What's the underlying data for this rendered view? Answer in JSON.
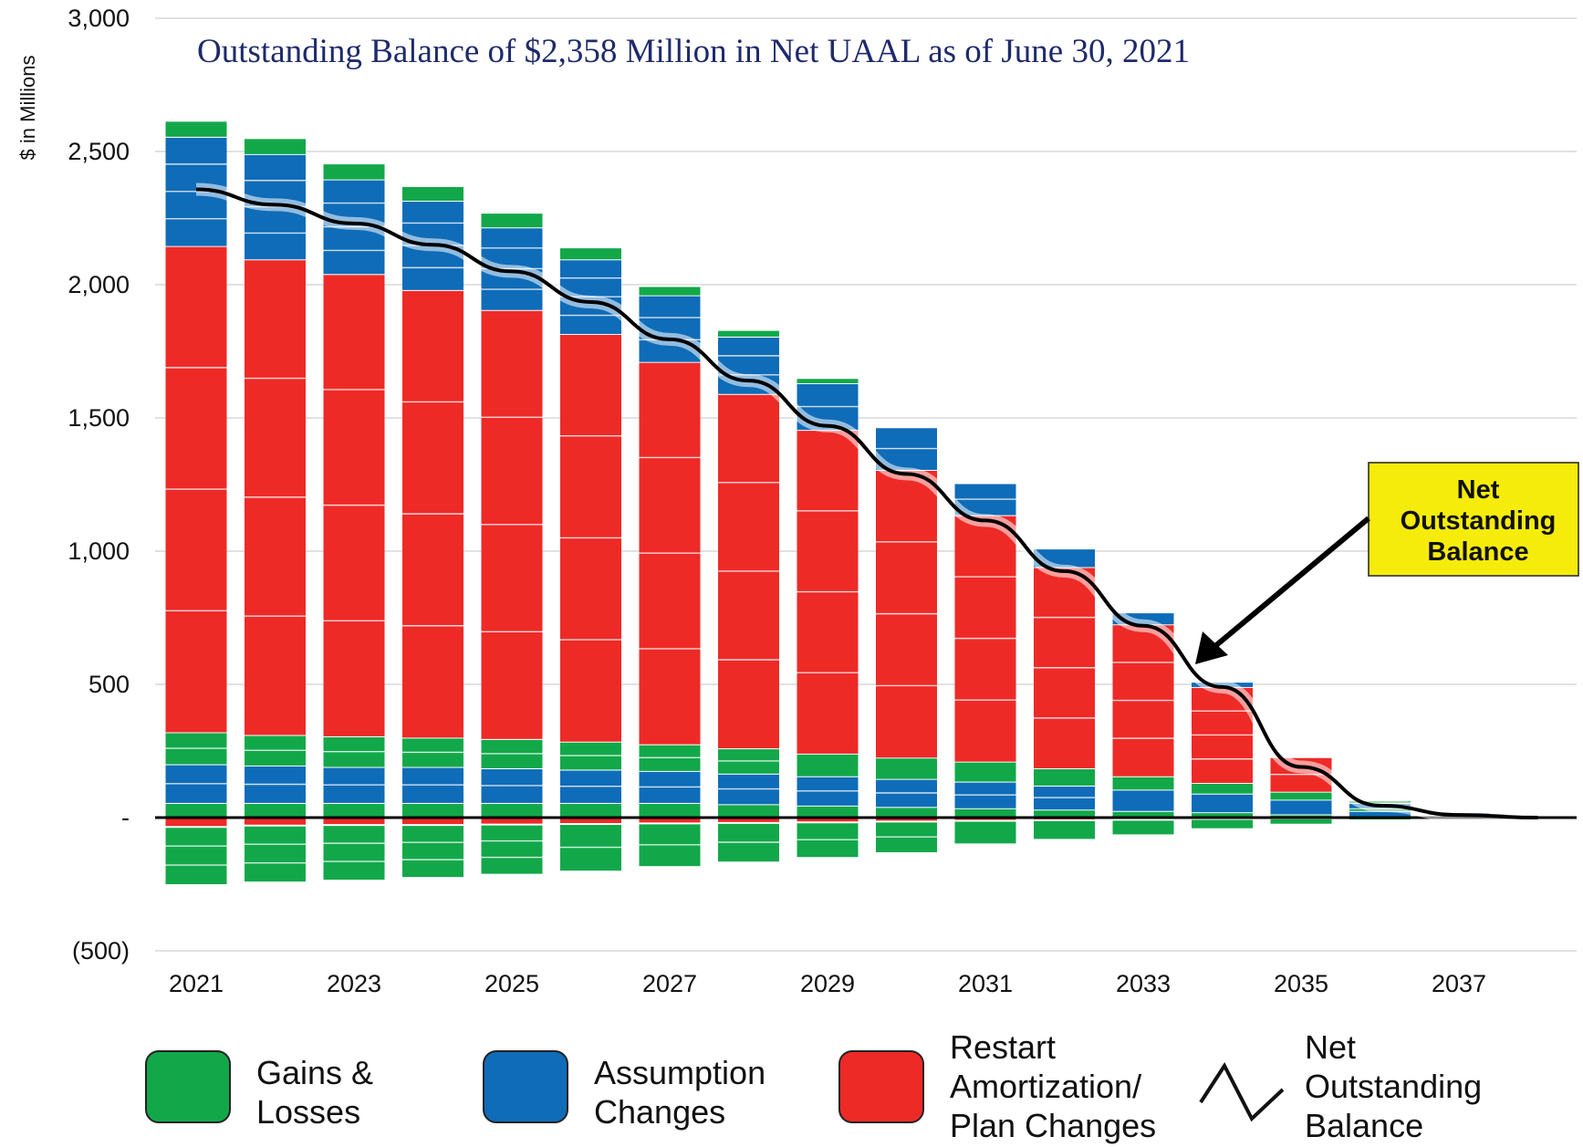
{
  "chart_data": {
    "type": "bar",
    "title": "Outstanding Balance of $2,358 Million in Net UAAL as of June 30, 2021",
    "ylabel": "$ in Millions",
    "xlabel": "",
    "ylim": [
      -500,
      3000
    ],
    "y_ticks": [
      "3,000",
      "2,500",
      "2,000",
      "1,500",
      "1,000",
      "500",
      "-",
      "(500)"
    ],
    "y_tick_values": [
      3000,
      2500,
      2000,
      1500,
      1000,
      500,
      0,
      -500
    ],
    "x_tick_labels": [
      "2021",
      "2023",
      "2025",
      "2027",
      "2029",
      "2031",
      "2033",
      "2035",
      "2037"
    ],
    "categories": [
      2021,
      2022,
      2023,
      2024,
      2025,
      2026,
      2027,
      2028,
      2029,
      2030,
      2031,
      2032,
      2033,
      2034,
      2035,
      2036,
      2037,
      2038
    ],
    "grid": true,
    "stacking": "positive segments stacked bottom-up in series order; negative segments stacked downward",
    "series": [
      {
        "name": "Gains & Losses (lower)",
        "color": "#12a84a",
        "values": [
          55,
          55,
          55,
          55,
          55,
          55,
          55,
          50,
          45,
          40,
          35,
          30,
          25,
          20,
          12,
          5,
          2,
          0
        ]
      },
      {
        "name": "Assumption Changes (lower)",
        "color": "#0f6cb8",
        "values": [
          145,
          140,
          135,
          135,
          130,
          125,
          120,
          115,
          110,
          105,
          100,
          90,
          80,
          70,
          55,
          20,
          5,
          0
        ]
      },
      {
        "name": "Gains & Losses (middle)",
        "color": "#12a84a",
        "values": [
          120,
          115,
          115,
          110,
          110,
          105,
          100,
          95,
          85,
          80,
          75,
          65,
          50,
          40,
          30,
          10,
          3,
          0
        ]
      },
      {
        "name": "Restart Amortization/ Plan Changes",
        "color": "#ee2a27",
        "values": [
          1825,
          1785,
          1735,
          1680,
          1610,
          1530,
          1435,
          1330,
          1215,
          1080,
          925,
          755,
          570,
          360,
          130,
          0,
          0,
          0
        ]
      },
      {
        "name": "Assumption Changes (upper)",
        "color": "#0f6cb8",
        "values": [
          410,
          395,
          355,
          335,
          310,
          280,
          250,
          215,
          175,
          160,
          120,
          70,
          45,
          20,
          0,
          20,
          10,
          0
        ]
      },
      {
        "name": "Gains & Losses (upper)",
        "color": "#12a84a",
        "values": [
          60,
          60,
          60,
          55,
          55,
          45,
          35,
          25,
          20,
          0,
          0,
          0,
          0,
          0,
          0,
          10,
          0,
          0
        ]
      },
      {
        "name": "Negative (red)",
        "color": "#ee2a27",
        "values": [
          -35,
          -30,
          -28,
          -28,
          -26,
          -24,
          -22,
          -20,
          -18,
          -15,
          -12,
          -10,
          -8,
          -5,
          -3,
          -1,
          0,
          0
        ]
      },
      {
        "name": "Negative (green)",
        "color": "#12a84a",
        "values": [
          -215,
          -210,
          -205,
          -195,
          -185,
          -175,
          -160,
          -145,
          -130,
          -115,
          -85,
          -70,
          -55,
          -35,
          -20,
          -6,
          -2,
          0
        ]
      }
    ],
    "net_outstanding_balance": {
      "x": [
        2021,
        2022,
        2023,
        2024,
        2025,
        2026,
        2027,
        2028,
        2029,
        2030,
        2031,
        2032,
        2033,
        2034,
        2035,
        2036,
        2037,
        2038
      ],
      "values": [
        2358,
        2300,
        2230,
        2150,
        2050,
        1935,
        1795,
        1640,
        1470,
        1290,
        1115,
        925,
        720,
        490,
        190,
        45,
        10,
        0
      ]
    },
    "callout": {
      "lines": [
        "Net",
        "Outstanding",
        "Balance"
      ],
      "background": "#f5ec0b"
    },
    "legend": {
      "placement": "bottom",
      "items": [
        {
          "lines": [
            "Gains &",
            "Losses"
          ],
          "color": "#12a84a",
          "shape": "box"
        },
        {
          "lines": [
            "Assumption",
            "Changes"
          ],
          "color": "#0f6cb8",
          "shape": "box"
        },
        {
          "lines": [
            "Restart",
            "Amortization/",
            "Plan Changes"
          ],
          "color": "#ee2a27",
          "shape": "box"
        },
        {
          "lines": [
            "Net",
            "Outstanding",
            "Balance"
          ],
          "color": "#111111",
          "shape": "line"
        }
      ]
    }
  }
}
